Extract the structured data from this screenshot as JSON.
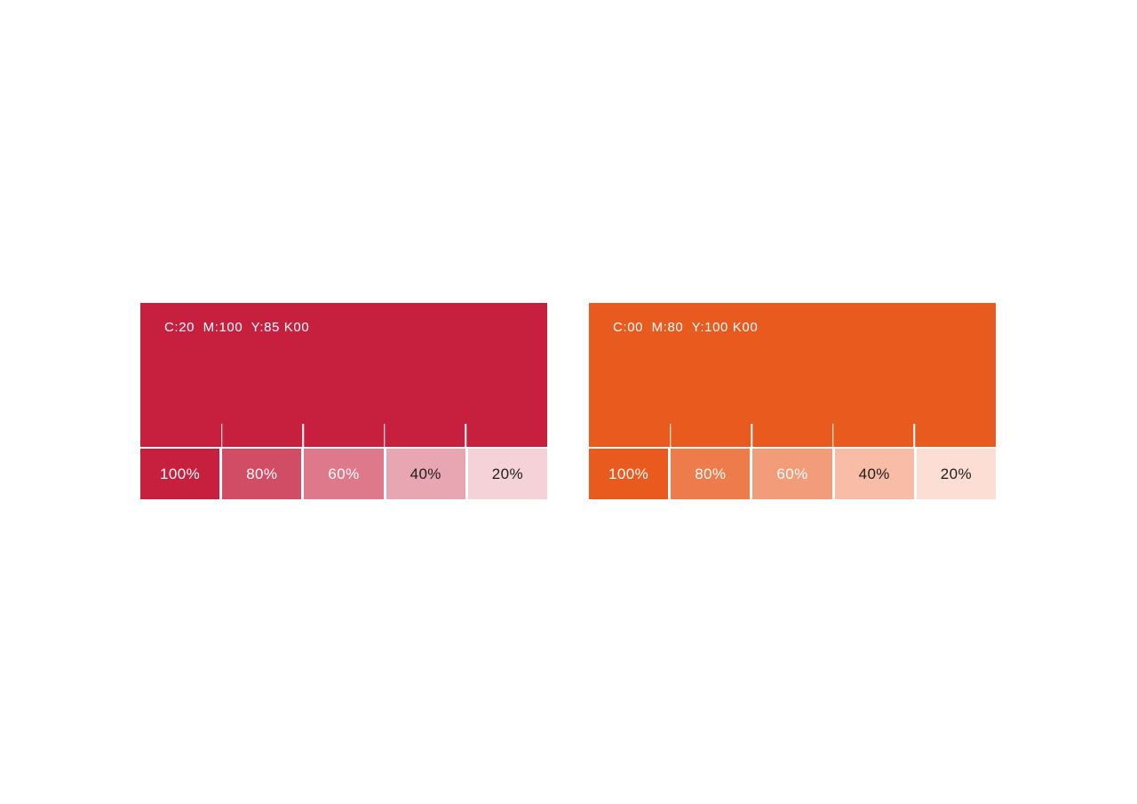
{
  "page": {
    "background": "#ffffff"
  },
  "swatches": [
    {
      "id": "crimson-red",
      "label": "C:20  M:100  Y:85 K00",
      "base_color": "#C6203E",
      "label_color": "#ffffff",
      "tints": [
        {
          "label": "100%",
          "color": "#C6203E",
          "text_color": "#ffffff"
        },
        {
          "label": "80%",
          "color": "#D14D65",
          "text_color": "#ffffff"
        },
        {
          "label": "60%",
          "color": "#DD798B",
          "text_color": "#ffffff"
        },
        {
          "label": "40%",
          "color": "#E8A6B2",
          "text_color": "#1d1d1b"
        },
        {
          "label": "20%",
          "color": "#F4D2D8",
          "text_color": "#1d1d1b"
        }
      ]
    },
    {
      "id": "orange",
      "label": "C:00  M:80  Y:100 K00",
      "base_color": "#E95A1F",
      "label_color": "#ffffff",
      "tints": [
        {
          "label": "100%",
          "color": "#E95A1F",
          "text_color": "#ffffff"
        },
        {
          "label": "80%",
          "color": "#EE7B4C",
          "text_color": "#ffffff"
        },
        {
          "label": "60%",
          "color": "#F39C79",
          "text_color": "#ffffff"
        },
        {
          "label": "40%",
          "color": "#F9BDA7",
          "text_color": "#1d1d1b"
        },
        {
          "label": "20%",
          "color": "#FDDED4",
          "text_color": "#1d1d1b"
        }
      ]
    }
  ]
}
